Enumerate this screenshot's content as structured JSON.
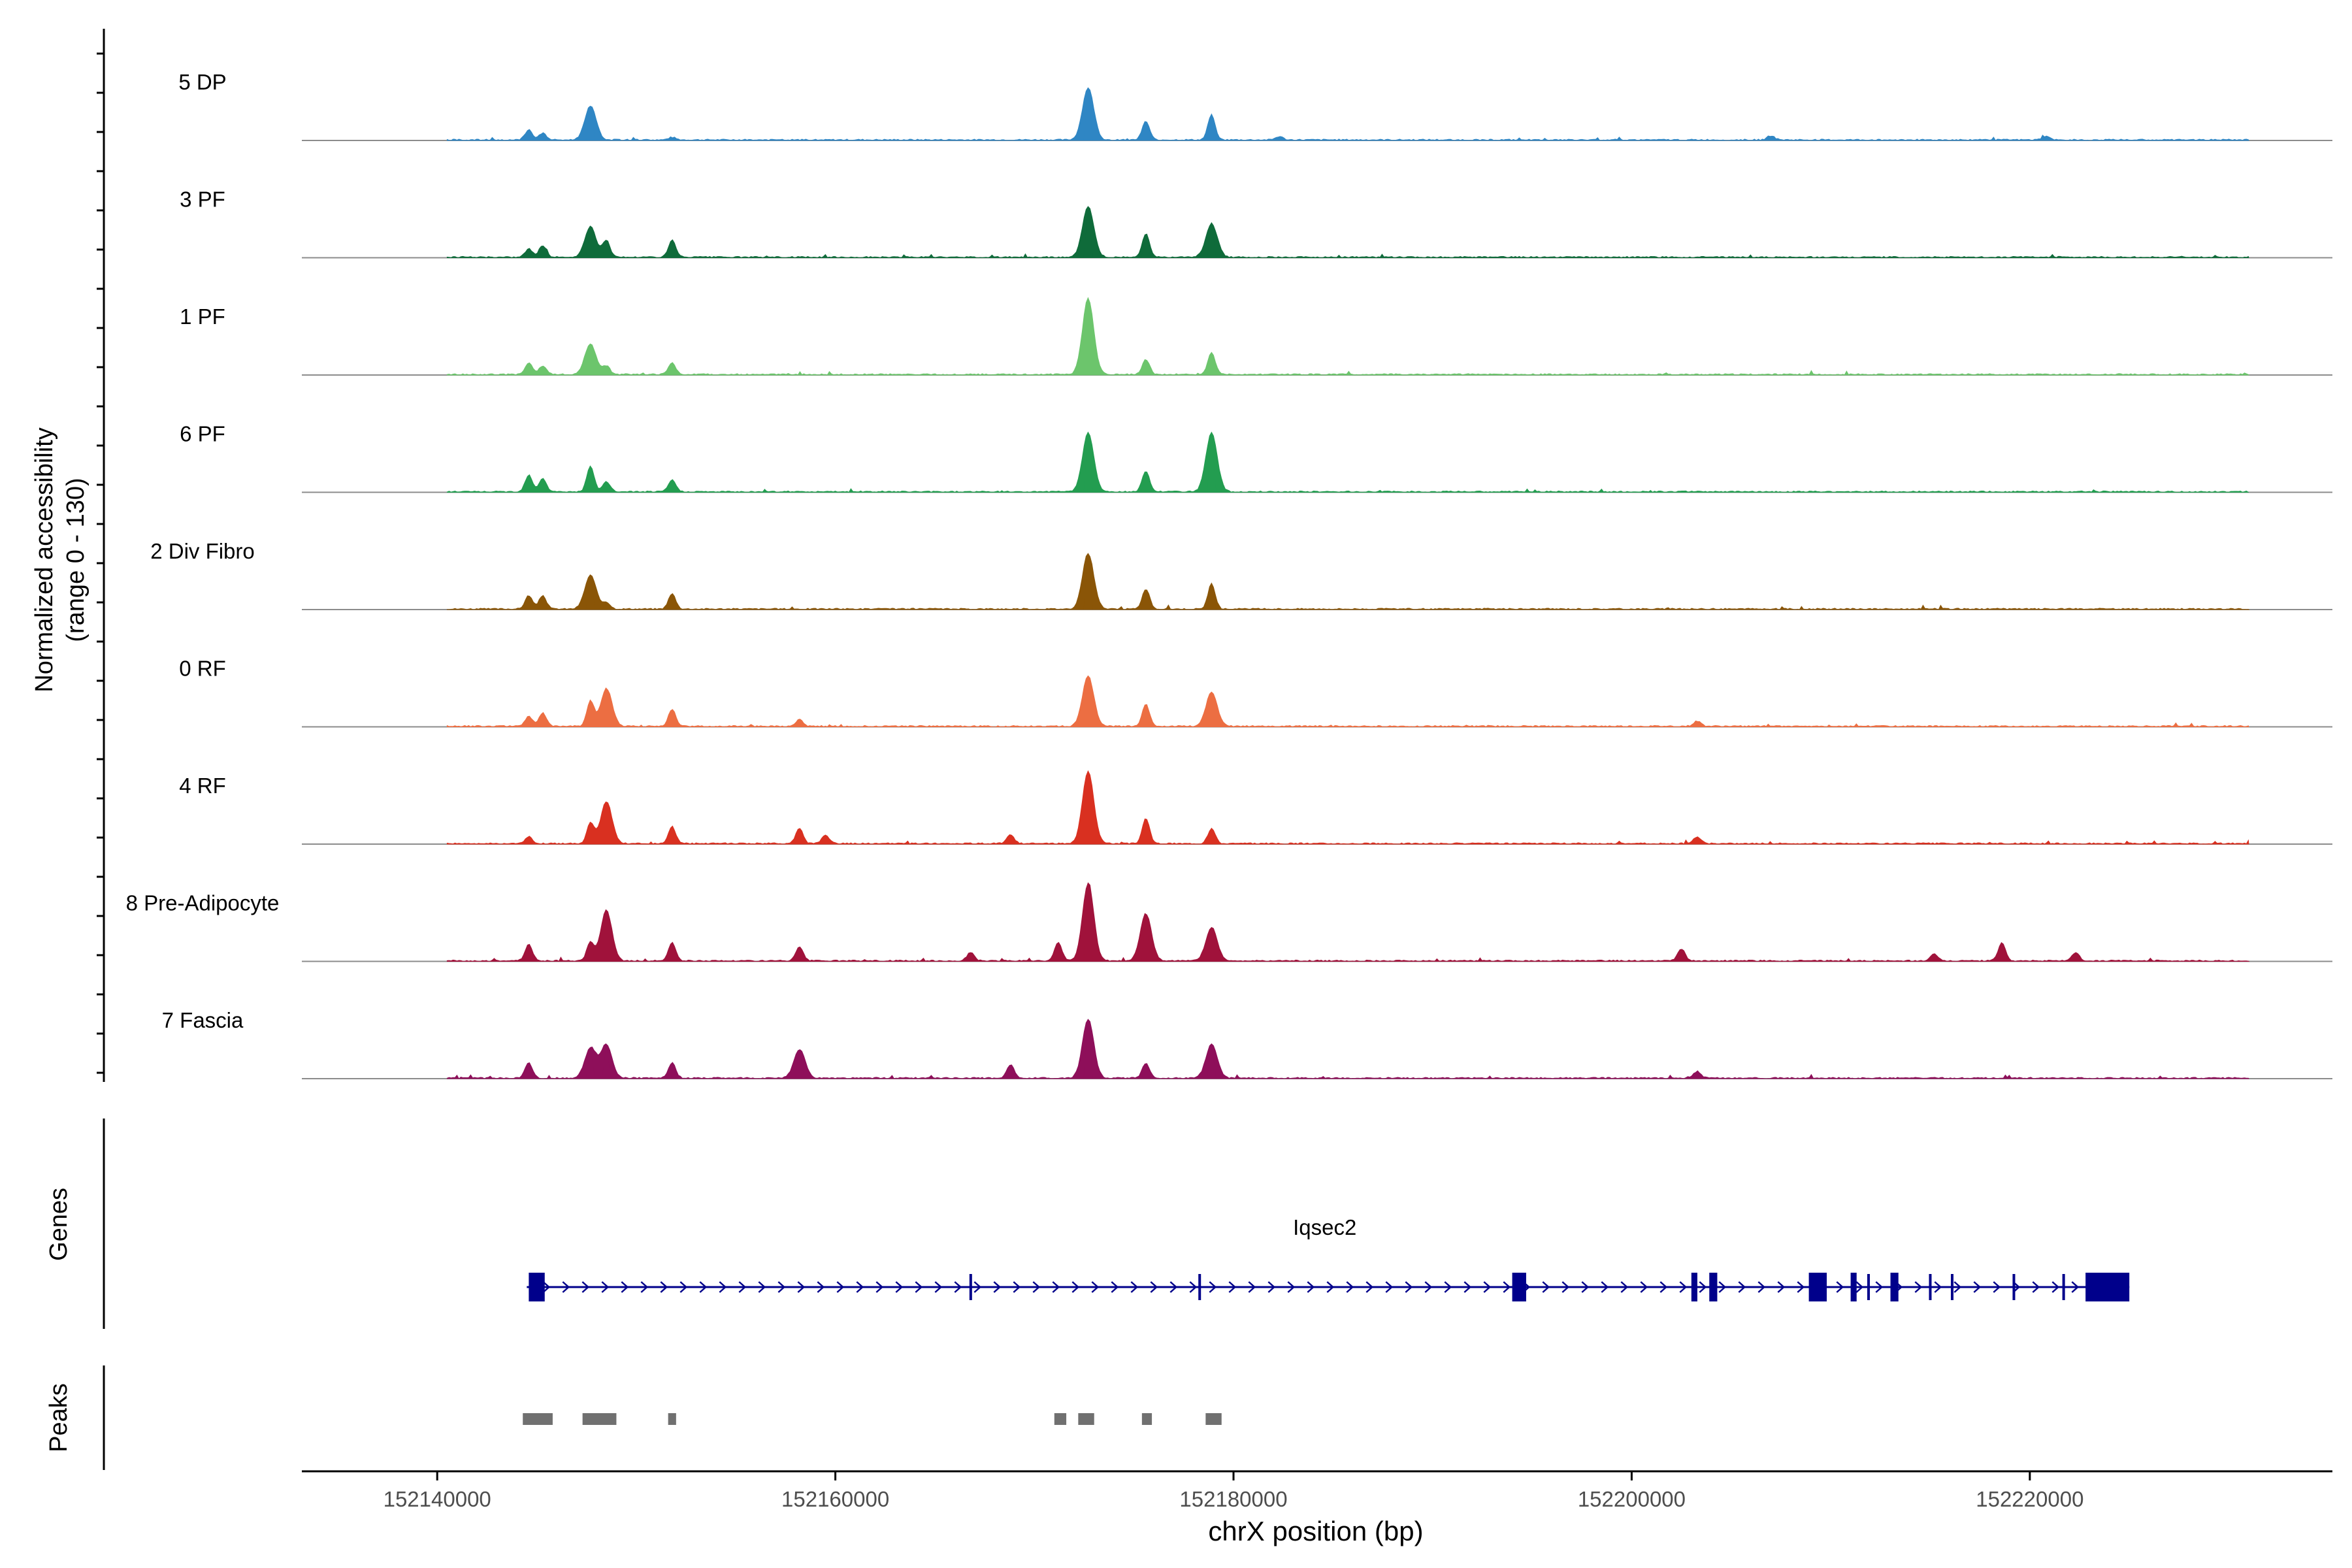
{
  "chart_data": {
    "type": "area",
    "title": "",
    "xlabel": "chrX position (bp)",
    "ylabel_line1": "Normalized accessibility",
    "ylabel_line2": "(range 0 - 130)",
    "y_range": [
      0,
      130
    ],
    "x_range": [
      152133200,
      152235200
    ],
    "x_ticks": [
      152140000,
      152160000,
      152180000,
      152200000,
      152220000
    ],
    "x_tick_labels": [
      "152140000",
      "152160000",
      "152180000",
      "152200000",
      "152220000"
    ],
    "baseline_color": "#8c8c8c",
    "tracks": [
      {
        "name": "5 DP",
        "color": "#2f86c4",
        "peaks": [
          [
            152144600,
            12
          ],
          [
            152145300,
            8
          ],
          [
            152147700,
            40
          ],
          [
            152151800,
            3
          ],
          [
            152172700,
            62
          ],
          [
            152175600,
            22
          ],
          [
            152178900,
            30
          ],
          [
            152182300,
            4
          ],
          [
            152207000,
            5
          ],
          [
            152220800,
            4
          ]
        ]
      },
      {
        "name": "3 PF",
        "color": "#0f6b3a",
        "peaks": [
          [
            152144600,
            10
          ],
          [
            152145300,
            14
          ],
          [
            152147700,
            36
          ],
          [
            152148500,
            20
          ],
          [
            152151800,
            20
          ],
          [
            152172700,
            60
          ],
          [
            152175600,
            28
          ],
          [
            152178900,
            40
          ]
        ]
      },
      {
        "name": "1 PF",
        "color": "#6cc56c",
        "peaks": [
          [
            152144600,
            14
          ],
          [
            152145300,
            10
          ],
          [
            152147700,
            36
          ],
          [
            152148500,
            10
          ],
          [
            152151800,
            14
          ],
          [
            152172700,
            90
          ],
          [
            152175600,
            18
          ],
          [
            152178900,
            26
          ]
        ]
      },
      {
        "name": "6 PF",
        "color": "#239d50",
        "peaks": [
          [
            152144600,
            20
          ],
          [
            152145300,
            16
          ],
          [
            152147700,
            30
          ],
          [
            152148500,
            12
          ],
          [
            152151800,
            14
          ],
          [
            152172700,
            70
          ],
          [
            152175600,
            24
          ],
          [
            152178900,
            70
          ]
        ]
      },
      {
        "name": "2 Div Fibro",
        "color": "#8a5507",
        "peaks": [
          [
            152144600,
            16
          ],
          [
            152145300,
            16
          ],
          [
            152147700,
            40
          ],
          [
            152148500,
            8
          ],
          [
            152151800,
            18
          ],
          [
            152172700,
            66
          ],
          [
            152175600,
            24
          ],
          [
            152178900,
            30
          ]
        ]
      },
      {
        "name": "0 RF",
        "color": "#ec6e42",
        "peaks": [
          [
            152144600,
            12
          ],
          [
            152145300,
            16
          ],
          [
            152147700,
            30
          ],
          [
            152148500,
            45
          ],
          [
            152151800,
            20
          ],
          [
            152158200,
            8
          ],
          [
            152172700,
            60
          ],
          [
            152175600,
            26
          ],
          [
            152178900,
            40
          ],
          [
            152203300,
            6
          ]
        ]
      },
      {
        "name": "4 RF",
        "color": "#d93020",
        "peaks": [
          [
            152144600,
            8
          ],
          [
            152147700,
            24
          ],
          [
            152148500,
            50
          ],
          [
            152151800,
            20
          ],
          [
            152158200,
            18
          ],
          [
            152159500,
            10
          ],
          [
            152168800,
            10
          ],
          [
            152172700,
            86
          ],
          [
            152175600,
            30
          ],
          [
            152178900,
            18
          ],
          [
            152203300,
            8
          ]
        ]
      },
      {
        "name": "8 Pre-Adipocyte",
        "color": "#a0123b",
        "peaks": [
          [
            152144600,
            20
          ],
          [
            152147700,
            22
          ],
          [
            152148500,
            60
          ],
          [
            152151800,
            22
          ],
          [
            152158200,
            16
          ],
          [
            152166800,
            10
          ],
          [
            152171200,
            22
          ],
          [
            152172700,
            92
          ],
          [
            152175600,
            56
          ],
          [
            152178900,
            40
          ],
          [
            152202500,
            14
          ],
          [
            152215200,
            8
          ],
          [
            152218600,
            22
          ],
          [
            152222300,
            10
          ]
        ]
      },
      {
        "name": "7 Fascia",
        "color": "#8e0f5a",
        "peaks": [
          [
            152144600,
            18
          ],
          [
            152147700,
            36
          ],
          [
            152148500,
            40
          ],
          [
            152151800,
            18
          ],
          [
            152158200,
            34
          ],
          [
            152168800,
            16
          ],
          [
            152172700,
            70
          ],
          [
            152175600,
            18
          ],
          [
            152178900,
            40
          ],
          [
            152203300,
            8
          ]
        ]
      }
    ],
    "genes": {
      "label": "Genes",
      "items": [
        {
          "name": "Iqsec2",
          "start": 152144500,
          "end": 152225000,
          "strand": "+",
          "exons": [
            [
              152144600,
              152145400
            ],
            [
              152194000,
              152194700
            ],
            [
              152203000,
              152203300
            ],
            [
              152203900,
              152204300
            ],
            [
              152208900,
              152209800
            ],
            [
              152211000,
              152211300
            ],
            [
              152213000,
              152213400
            ],
            [
              152222800,
              152225000
            ]
          ],
          "small_exons": [
            152166800,
            152178300,
            152211900,
            152215000,
            152216100,
            152219200,
            152221700
          ]
        }
      ]
    },
    "peaks_track": {
      "label": "Peaks",
      "regions": [
        [
          152144300,
          152145800
        ],
        [
          152147300,
          152149000
        ],
        [
          152151600,
          152152000
        ],
        [
          152171000,
          152171600
        ],
        [
          152172200,
          152173000
        ],
        [
          152175400,
          152175900
        ],
        [
          152178600,
          152179400
        ]
      ]
    }
  }
}
